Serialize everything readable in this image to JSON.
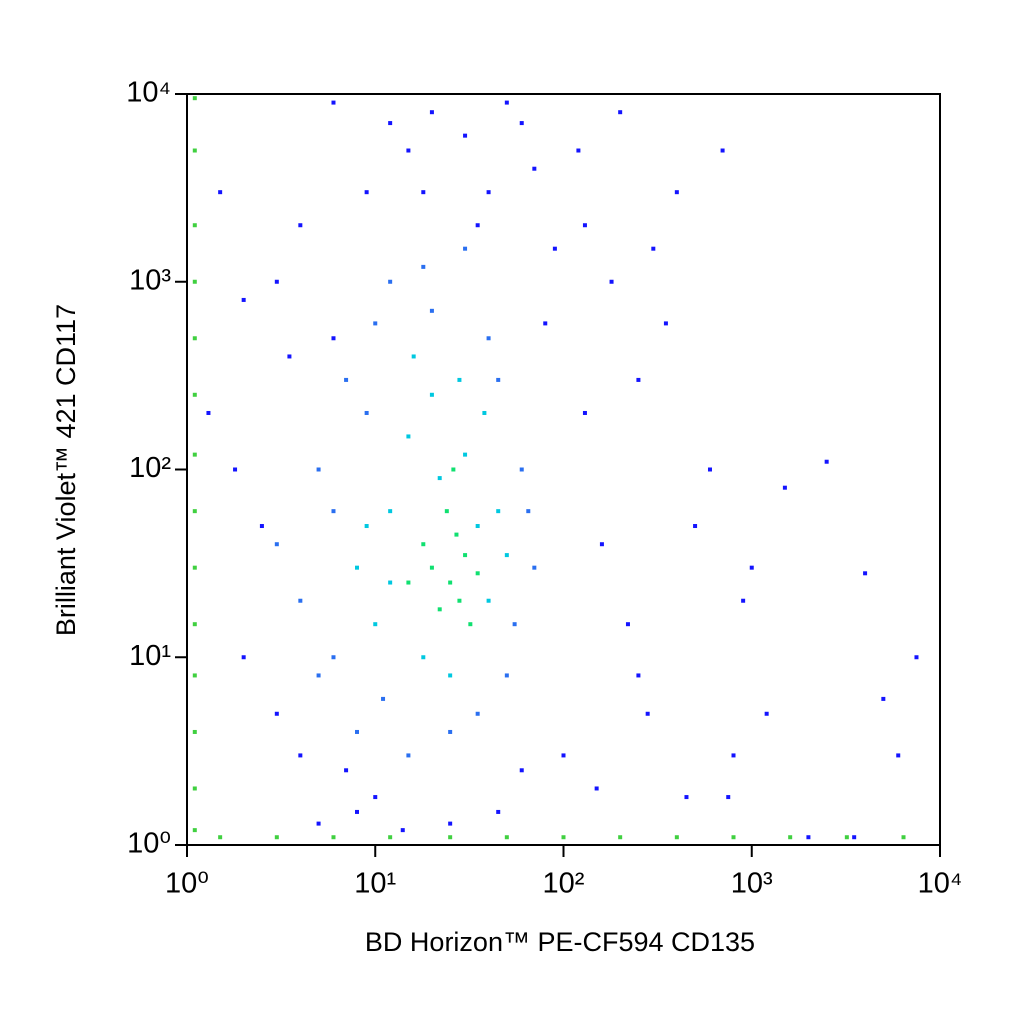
{
  "chart_data": {
    "type": "scatter",
    "x_label": "BD Horizon™ PE-CF594 CD135",
    "y_label": "Brilliant Violet™ 421 CD117",
    "xscale": "log",
    "yscale": "log",
    "xlim": [
      1,
      10000
    ],
    "ylim": [
      1,
      10000
    ],
    "xticks": [
      {
        "value": 1,
        "label": "10⁰"
      },
      {
        "value": 10,
        "label": "10¹"
      },
      {
        "value": 100,
        "label": "10²"
      },
      {
        "value": 1000,
        "label": "10³"
      },
      {
        "value": 10000,
        "label": "10⁴"
      }
    ],
    "yticks": [
      {
        "value": 1,
        "label": "10⁰"
      },
      {
        "value": 10,
        "label": "10¹"
      },
      {
        "value": 100,
        "label": "10²"
      },
      {
        "value": 1000,
        "label": "10³"
      },
      {
        "value": 10000,
        "label": "10⁴"
      }
    ],
    "series": [
      {
        "color": "#1414ff",
        "x": [
          1.5,
          2,
          3,
          4,
          6,
          8,
          12,
          15,
          20,
          30,
          40,
          50,
          70,
          90,
          120,
          150,
          200,
          250,
          300,
          400,
          500,
          700,
          900,
          1500,
          2500,
          4000,
          6000,
          7500,
          1.3,
          2.5,
          3.5,
          5,
          7,
          10,
          14,
          18,
          25,
          35,
          45,
          60,
          80,
          100,
          130,
          180,
          220,
          280,
          350,
          450,
          600,
          800,
          1200,
          2000,
          3500,
          5000,
          3,
          2,
          1.8,
          4,
          6,
          9,
          160,
          250,
          130,
          60,
          1000,
          750
        ],
        "values": [
          3000,
          800,
          5,
          2000,
          9000,
          1.5,
          7000,
          5000,
          8000,
          6000,
          3000,
          9000,
          4000,
          1500,
          5000,
          2,
          8000,
          300,
          1500,
          3000,
          50,
          5000,
          20,
          80,
          110,
          28,
          3,
          10,
          200,
          50,
          400,
          1.3,
          2.5,
          1.8,
          1.2,
          3000,
          1.3,
          2000,
          1.5,
          2.5,
          600,
          3,
          200,
          1000,
          15,
          5,
          600,
          1.8,
          100,
          3,
          5,
          1.1,
          1.1,
          6,
          1000,
          10,
          100,
          3,
          500,
          3000,
          40,
          8,
          2000,
          7000,
          30,
          1.8
        ]
      },
      {
        "color": "#2a6ff0",
        "x": [
          4,
          5,
          6,
          7,
          8,
          10,
          12,
          15,
          20,
          25,
          30,
          40,
          50,
          60,
          70,
          3,
          5,
          9,
          45,
          55,
          35,
          18,
          11,
          6,
          65
        ],
        "values": [
          20,
          100,
          10,
          300,
          4,
          600,
          1000,
          3,
          700,
          4,
          1500,
          500,
          8,
          100,
          30,
          40,
          8,
          200,
          300,
          15,
          5,
          1200,
          6,
          60,
          60
        ]
      },
      {
        "color": "#00c8e0",
        "x": [
          8,
          10,
          12,
          15,
          18,
          20,
          25,
          30,
          35,
          40,
          45,
          12,
          16,
          28,
          22,
          9,
          38,
          50
        ],
        "values": [
          30,
          15,
          60,
          150,
          10,
          250,
          8,
          120,
          50,
          20,
          60,
          25,
          400,
          300,
          90,
          50,
          200,
          35
        ]
      },
      {
        "color": "#10e070",
        "x": [
          20,
          25,
          28,
          30,
          22,
          18,
          24,
          32,
          27,
          15,
          26,
          35
        ],
        "values": [
          30,
          25,
          20,
          35,
          18,
          40,
          60,
          15,
          45,
          25,
          100,
          28
        ]
      },
      {
        "color": "#40d040",
        "x": [
          1.1,
          1.1,
          1.1,
          1.1,
          1.1,
          1.1,
          1.1,
          1.1,
          1.1,
          1.1,
          1.1,
          1.1,
          1.1,
          1.1,
          1.5,
          3,
          6,
          12,
          25,
          50,
          100,
          200,
          400,
          800,
          1600,
          3200,
          6400
        ],
        "values": [
          1.2,
          2,
          4,
          8,
          15,
          30,
          60,
          120,
          250,
          500,
          1000,
          2000,
          5000,
          9500,
          1.1,
          1.1,
          1.1,
          1.1,
          1.1,
          1.1,
          1.1,
          1.1,
          1.1,
          1.1,
          1.1,
          1.1,
          1.1
        ]
      }
    ]
  }
}
